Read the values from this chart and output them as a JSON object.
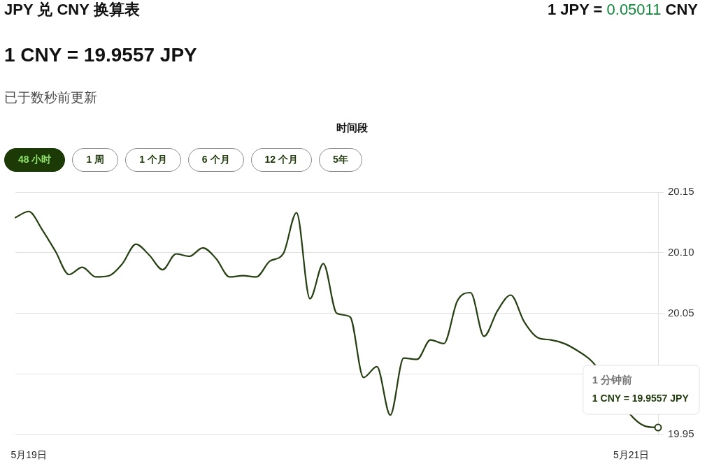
{
  "chart_data": {
    "type": "line",
    "title": "JPY 兑 CNY 换算表",
    "subtitle": "1 CNY = 19.9557 JPY",
    "annotations": [
      "1 JPY = 0.05011 CNY",
      "已于数秒前更新",
      "时间段",
      "48 小时",
      "1 周",
      "1 个月",
      "6 个月",
      "12 个月",
      "5年",
      "1 分钟前",
      "1 CNY = 19.9557 JPY"
    ],
    "categories": [
      null,
      "5月19日",
      null,
      null,
      null,
      null,
      null,
      null,
      null,
      null,
      null,
      null,
      null,
      null,
      null,
      null,
      null,
      null,
      null,
      null,
      null,
      null,
      null,
      null,
      null,
      null,
      null,
      null,
      null,
      null,
      null,
      null,
      null,
      null,
      null,
      null,
      null,
      null,
      null,
      null,
      null,
      null,
      null,
      null,
      null,
      null,
      "5月21日",
      null,
      null
    ],
    "series": [
      {
        "color": "#263f12",
        "values": [
          20.129,
          20.134,
          20.119,
          20.101,
          20.082,
          20.088,
          20.08,
          20.081,
          20.091,
          20.107,
          20.098,
          20.086,
          20.099,
          20.097,
          20.104,
          20.095,
          20.08,
          20.081,
          20.08,
          20.093,
          20.099,
          20.133,
          20.062,
          20.091,
          20.05,
          20.047,
          19.997,
          20.006,
          19.966,
          20.013,
          20.012,
          20.028,
          20.025,
          20.06,
          20.067,
          20.031,
          20.052,
          20.065,
          20.043,
          20.03,
          20.028,
          20.025,
          20.019,
          20.011,
          null,
          null,
          null,
          19.957,
          19.9557
        ]
      }
    ],
    "ylim": [
      19.95,
      20.15
    ],
    "yticks": [
      19.95,
      {
        "value": 20,
        "label": null
      },
      20.05,
      {
        "value": 20.1,
        "label": "20.10"
      },
      20.15
    ],
    "grid": "y",
    "marker": "none",
    "line_style": "solid"
  }
}
